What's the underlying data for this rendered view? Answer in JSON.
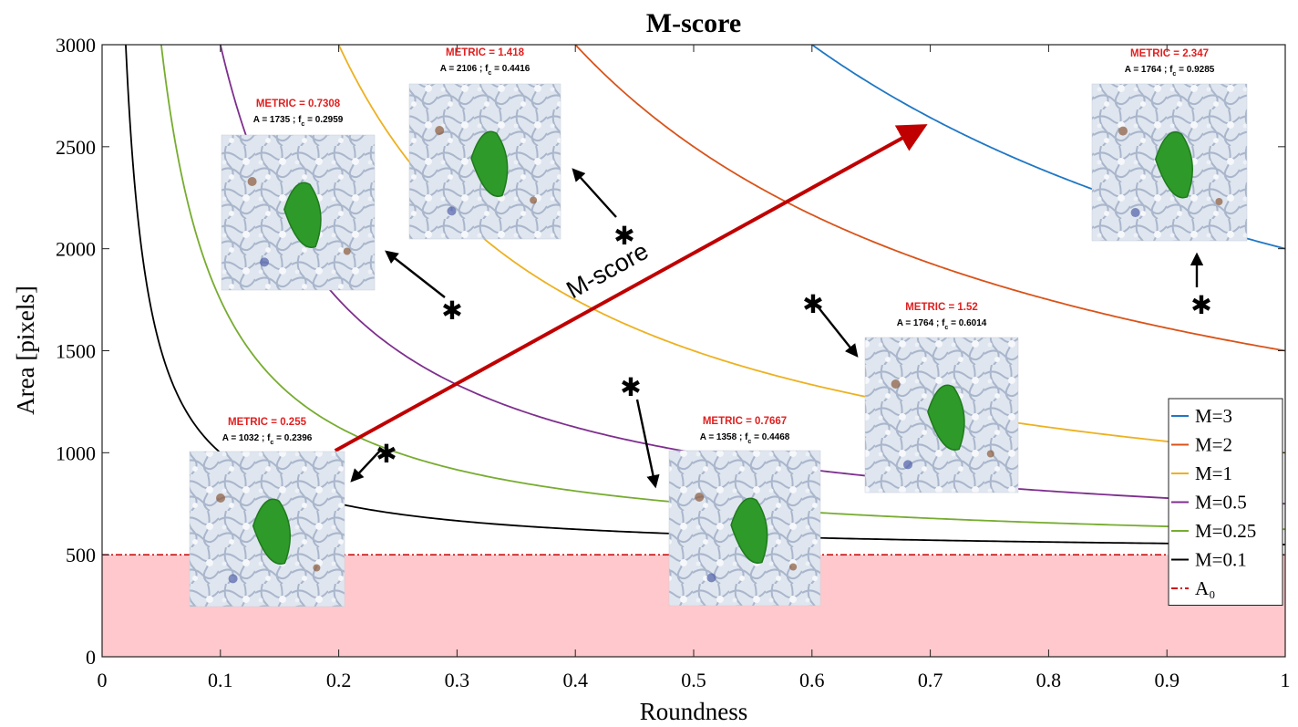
{
  "chart_data": {
    "type": "line",
    "title": "M-score",
    "xlabel": "Roundness",
    "ylabel": "Area [pixels]",
    "xlim": [
      0,
      1
    ],
    "ylim": [
      0,
      3000
    ],
    "xticks": [
      "0",
      "0.1",
      "0.2",
      "0.3",
      "0.4",
      "0.5",
      "0.6",
      "0.7",
      "0.8",
      "0.9",
      "1"
    ],
    "yticks": [
      "0",
      "500",
      "1000",
      "1500",
      "2000",
      "2500",
      "3000"
    ],
    "grid": false,
    "legend_position": "bottom-right",
    "threshold": {
      "name": "A₀",
      "value": 500,
      "color": "#cc1111",
      "fill": "#ffc8cc"
    },
    "series": [
      {
        "name": "M=3",
        "m": 3,
        "a0": 500,
        "color": "#1f77c4"
      },
      {
        "name": "M=2",
        "m": 2,
        "a0": 500,
        "color": "#d95319"
      },
      {
        "name": "M=1",
        "m": 1,
        "a0": 500,
        "color": "#edb120"
      },
      {
        "name": "M=0.5",
        "m": 0.5,
        "a0": 500,
        "color": "#7e2f8e"
      },
      {
        "name": "M=0.25",
        "m": 0.25,
        "a0": 500,
        "color": "#77ac30"
      },
      {
        "name": "M=0.1",
        "m": 0.1,
        "a0": 500,
        "color": "#000000"
      }
    ],
    "trend_arrow": {
      "label": "M-score",
      "from": [
        0.197,
        1010
      ],
      "to": [
        0.7,
        2620
      ],
      "color": "#c00000"
    },
    "annotations": [
      {
        "metric": "METRIC = 0.255",
        "area": "A = 1032",
        "fc": "f",
        "fc_sub": "c",
        "fc_value": " = 0.2396"
      },
      {
        "metric": "METRIC = 0.7308",
        "area": "A = 1735",
        "fc": "f",
        "fc_sub": "c",
        "fc_value": " = 0.2959"
      },
      {
        "metric": "METRIC = 1.418",
        "area": "A = 2106",
        "fc": "f",
        "fc_sub": "c",
        "fc_value": " = 0.4416"
      },
      {
        "metric": "METRIC = 0.7667",
        "area": "A = 1358",
        "fc": "f",
        "fc_sub": "c",
        "fc_value": " = 0.4468"
      },
      {
        "metric": "METRIC = 1.52",
        "area": "A = 1764",
        "fc": "f",
        "fc_sub": "c",
        "fc_value": " = 0.6014"
      },
      {
        "metric": "METRIC = 2.347",
        "area": "A = 1764",
        "fc": "f",
        "fc_sub": "c",
        "fc_value": " = 0.9285"
      }
    ]
  }
}
